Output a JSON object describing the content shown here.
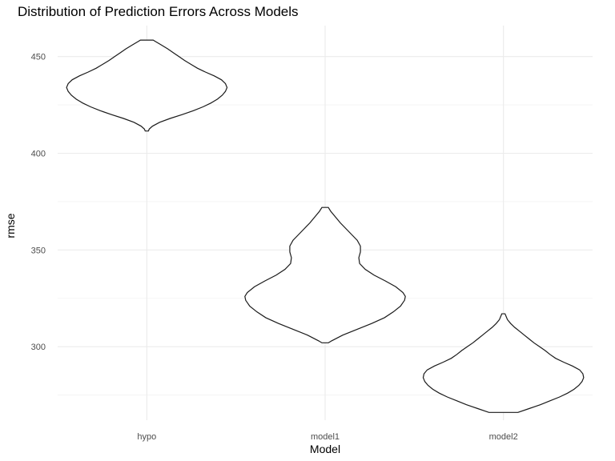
{
  "chart_data": {
    "type": "violin",
    "title": "Distribution of Prediction Errors Across Models",
    "xlabel": "Model",
    "ylabel": "rmse",
    "categories": [
      "hypo",
      "model1",
      "model2"
    ],
    "ylim": [
      262,
      466
    ],
    "yticks": [
      300,
      350,
      400,
      450
    ],
    "yminor": [
      275,
      325,
      375,
      425
    ],
    "grid": true,
    "legend": "none",
    "series": [
      {
        "category": "hypo",
        "min": 411.5,
        "max": 458.5,
        "density": [
          [
            411.5,
            0.02
          ],
          [
            412.5,
            0.03
          ],
          [
            414,
            0.07
          ],
          [
            416,
            0.16
          ],
          [
            418,
            0.29
          ],
          [
            420,
            0.44
          ],
          [
            422,
            0.58
          ],
          [
            424,
            0.7
          ],
          [
            426,
            0.8
          ],
          [
            428,
            0.88
          ],
          [
            430,
            0.94
          ],
          [
            432,
            0.98
          ],
          [
            434,
            1.0
          ],
          [
            436,
            0.98
          ],
          [
            438,
            0.93
          ],
          [
            440,
            0.84
          ],
          [
            442,
            0.73
          ],
          [
            444,
            0.63
          ],
          [
            446,
            0.55
          ],
          [
            448,
            0.47
          ],
          [
            450,
            0.4
          ],
          [
            452,
            0.33
          ],
          [
            454,
            0.26
          ],
          [
            456,
            0.18
          ],
          [
            458,
            0.1
          ],
          [
            458.5,
            0.08
          ]
        ]
      },
      {
        "category": "model1",
        "min": 302,
        "max": 372,
        "density": [
          [
            302,
            0.04
          ],
          [
            303,
            0.08
          ],
          [
            306,
            0.22
          ],
          [
            309,
            0.4
          ],
          [
            312,
            0.58
          ],
          [
            315,
            0.74
          ],
          [
            318,
            0.85
          ],
          [
            321,
            0.94
          ],
          [
            324,
            0.99
          ],
          [
            326,
            1.0
          ],
          [
            328,
            0.97
          ],
          [
            331,
            0.88
          ],
          [
            334,
            0.75
          ],
          [
            337,
            0.61
          ],
          [
            340,
            0.5
          ],
          [
            343,
            0.43
          ],
          [
            346,
            0.42
          ],
          [
            349,
            0.44
          ],
          [
            352,
            0.44
          ],
          [
            355,
            0.4
          ],
          [
            358,
            0.33
          ],
          [
            361,
            0.26
          ],
          [
            364,
            0.19
          ],
          [
            367,
            0.13
          ],
          [
            370,
            0.07
          ],
          [
            372,
            0.04
          ]
        ]
      },
      {
        "category": "model2",
        "min": 266,
        "max": 317,
        "density": [
          [
            266,
            0.18
          ],
          [
            268,
            0.32
          ],
          [
            270,
            0.46
          ],
          [
            272,
            0.58
          ],
          [
            274,
            0.7
          ],
          [
            276,
            0.8
          ],
          [
            278,
            0.88
          ],
          [
            280,
            0.94
          ],
          [
            282,
            0.98
          ],
          [
            284,
            1.0
          ],
          [
            286,
            0.99
          ],
          [
            288,
            0.95
          ],
          [
            290,
            0.86
          ],
          [
            292,
            0.75
          ],
          [
            294,
            0.65
          ],
          [
            296,
            0.58
          ],
          [
            298,
            0.52
          ],
          [
            300,
            0.45
          ],
          [
            302,
            0.38
          ],
          [
            304,
            0.32
          ],
          [
            306,
            0.26
          ],
          [
            308,
            0.2
          ],
          [
            310,
            0.14
          ],
          [
            312,
            0.09
          ],
          [
            314,
            0.05
          ],
          [
            316,
            0.03
          ],
          [
            317,
            0.02
          ]
        ]
      }
    ]
  }
}
